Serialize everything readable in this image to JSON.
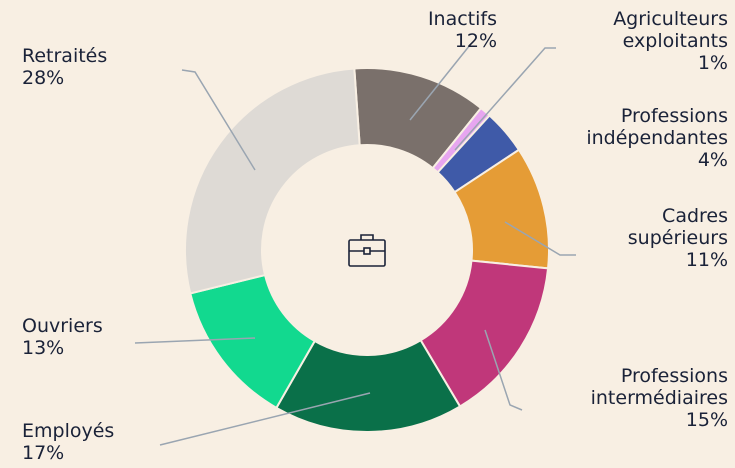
{
  "chart_data": {
    "type": "donut",
    "categories": [
      "Inactifs",
      "Agriculteurs exploitants",
      "Professions indépendantes",
      "Cadres supérieurs",
      "Professions intermédiaires",
      "Employés",
      "Ouvriers",
      "Retraités"
    ],
    "values": [
      12,
      1,
      4,
      11,
      15,
      17,
      13,
      28
    ],
    "value_labels": [
      "12%",
      "1%",
      "4%",
      "11%",
      "15%",
      "17%",
      "13%",
      "28%"
    ],
    "colors": [
      "#7a706b",
      "#e7a6f0",
      "#3f5aa8",
      "#e59c36",
      "#c0377a",
      "#0a7049",
      "#12d98f",
      "#dedad5"
    ]
  }
}
